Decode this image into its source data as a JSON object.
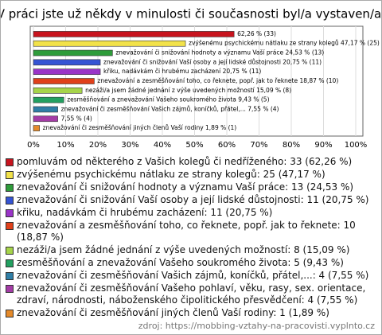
{
  "chart_data": {
    "type": "barh",
    "title": "V práci jste už někdy v minulosti či současnosti byl/a vystaven/a:",
    "categories": [
      "pomluvám od některého z Vašich kolegů či nedříženého: 33 (62,26 %)",
      "zvýšenému psychickému nátlaku ze strany kolegů: 25 (47,17 %)",
      "znevažování či snižování hodnoty a významu Vaší práce: 13 (24,53 %)",
      "znevažování či snižování Vaší osoby a její lidské důstojnosti: 11 (20,75 %)",
      "křiku, nadávkám či hrubému zacházení: 11 (20,75 %)",
      "znevažování a zesměšňování toho, co řeknete, popř. jak to řeknete: 10 (18,87 %)",
      "nezáži/a jsem žádné jednání z výše uvedených možností: 8 (15,09 %)",
      "zesměšňování a znevažování Vašeho soukromého života: 5 (9,43 %)",
      "znevažování či zesměšňování Vašich zájmů, koníčků, přátel,...: 4 (7,55 %)",
      "znevažování či zesměšňování Vašeho pohlaví, věku, rasy, sex. orientace, zdraví, národnosti, náboženského čipolitického přesvědčení: 4 (7,55 %)",
      "znevažování či zesměšňování jiných členů Vaší rodiny: 1 (1,89 %)"
    ],
    "values": [
      62.26,
      47.17,
      24.53,
      20.75,
      20.75,
      18.87,
      15.09,
      9.43,
      7.55,
      7.55,
      1.89
    ],
    "value_labels": [
      "62,26 % (33)",
      "zvýšenému psychickému nátlaku ze strany kolegů 47,17 % (25)",
      "znevažování či snižování hodnoty a významu Vaší práce 24,53 % (13)",
      "znevažování či snižování Vaší osoby a její lidské důstojnosti 20,75 % (11)",
      "křiku, nadávkám či hrubému zacházení 20,75 % (11)",
      "znevažování a zesměšňování toho, co řeknete, popř. jak to řeknete 18,87 % (10)",
      "nezáži/a jsem žádné jednání z výše uvedených možností 15,09 % (8)",
      "zesměšňování a znevažování Vašeho soukromého života 9,43 % (5)",
      "znevažování či zesměšňování Vašich zájmů, koníčků, přátel,... 7,55 % (4)",
      "7,55 % (4)",
      "znevažování či zesměšňování jiných členů Vaší rodiny 1,89 % (1)"
    ],
    "colors": [
      "#c8141e",
      "#f2e24a",
      "#2e9c3a",
      "#3554d4",
      "#9a34c8",
      "#e0401a",
      "#a6d44a",
      "#22a060",
      "#2f7ea6",
      "#a43ca6",
      "#e58a2a"
    ],
    "xlim": [
      0,
      100
    ],
    "xticks": [
      {
        "value": 0,
        "label": "0%"
      },
      {
        "value": 10,
        "label": "10%"
      },
      {
        "value": 20,
        "label": "20%"
      },
      {
        "value": 30,
        "label": "30%"
      },
      {
        "value": 40,
        "label": "40%"
      },
      {
        "value": 50,
        "label": "50%"
      },
      {
        "value": 60,
        "label": "60%"
      },
      {
        "value": 70,
        "label": "70%"
      },
      {
        "value": 80,
        "label": "80%"
      },
      {
        "value": 90,
        "label": "90%"
      },
      {
        "value": 100,
        "label": "100%"
      }
    ],
    "grid": true,
    "source": "zdroj: https://mobbing-vztahy-na-pracovisti.vyplnto.cz"
  }
}
